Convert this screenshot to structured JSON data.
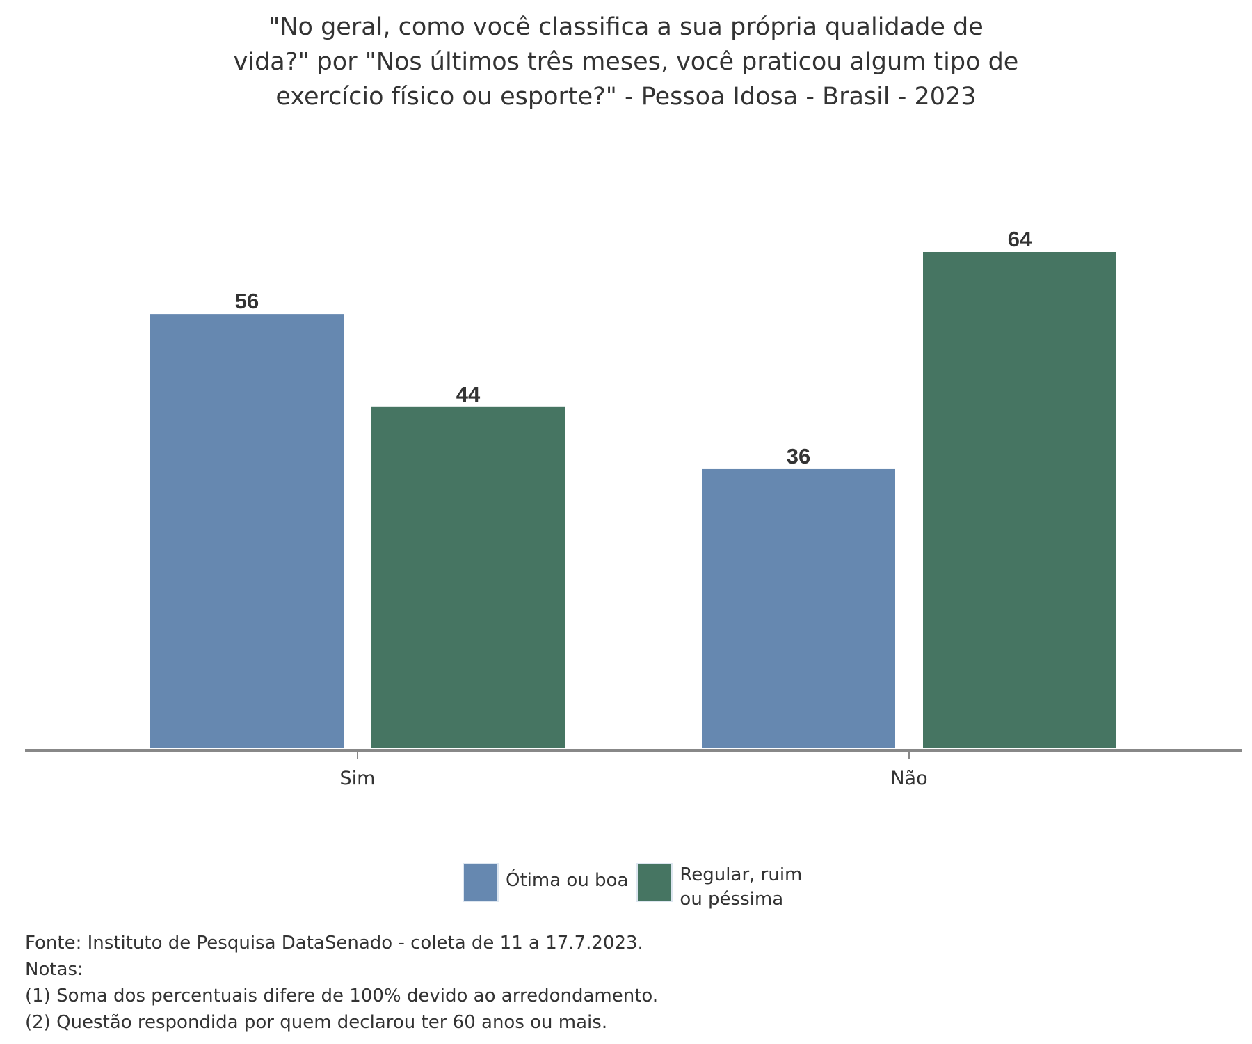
{
  "chart_data": {
    "type": "bar",
    "title_lines": [
      "\"No geral, como você classifica a sua própria qualidade de",
      "vida?\" por \"Nos últimos três meses, você praticou algum tipo de",
      "exercício físico ou esporte?\" - Pessoa Idosa - Brasil - 2023"
    ],
    "categories": [
      "Sim",
      "Não"
    ],
    "series": [
      {
        "name": "Ótima ou boa",
        "values": [
          56,
          36
        ],
        "color": "#6688b0"
      },
      {
        "name": "Regular, ruim ou péssima",
        "values": [
          44,
          64
        ],
        "color": "#467562"
      }
    ],
    "ylim": [
      0,
      64
    ],
    "grid": false,
    "legend_position": "bottom",
    "legend_labels": [
      [
        "Ótima ou boa"
      ],
      [
        "Regular, ruim",
        "ou péssima"
      ]
    ]
  },
  "footnotes": [
    "Fonte: Instituto de Pesquisa DataSenado - coleta de 11 a 17.7.2023.",
    "Notas:",
    "(1) Soma dos percentuais difere de 100% devido ao arredondamento.",
    "(2) Questão respondida por quem declarou ter 60 anos ou mais."
  ],
  "colors": {
    "axis": "#888888",
    "text": "#333333"
  }
}
